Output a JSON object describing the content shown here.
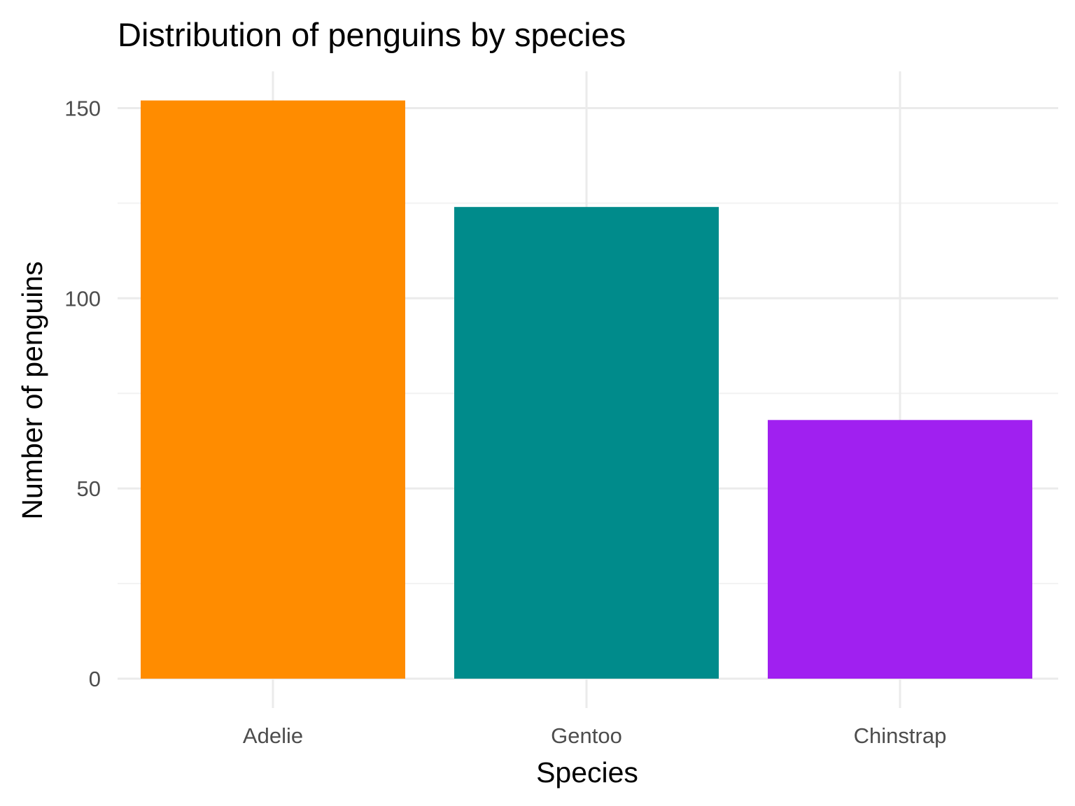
{
  "chart_data": {
    "type": "bar",
    "title": "Distribution of penguins by species",
    "xlabel": "Species",
    "ylabel": "Number of penguins",
    "categories": [
      "Adelie",
      "Gentoo",
      "Chinstrap"
    ],
    "values": [
      152,
      124,
      68
    ],
    "colors": [
      "#ff8c00",
      "#008b8b",
      "#a020f0"
    ],
    "ylim": [
      0,
      160
    ],
    "yticks": [
      0,
      50,
      100,
      150
    ],
    "grid": true,
    "legend": "none"
  }
}
